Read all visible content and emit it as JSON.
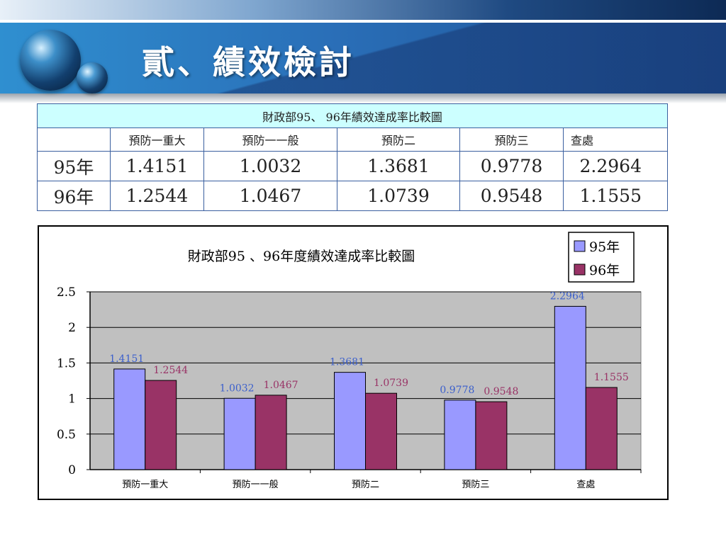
{
  "slide": {
    "title": "貳、績效檢討"
  },
  "table": {
    "caption": "財政部95、 96年績效達成率比較圖",
    "headers": [
      "",
      "預防一重大",
      "預防一一般",
      "預防二",
      "預防三",
      "查處"
    ],
    "rows": [
      {
        "label": "95年",
        "values": [
          "1.4151",
          "1.0032",
          "1.3681",
          "0.9778",
          "2.2964"
        ]
      },
      {
        "label": "96年",
        "values": [
          "1.2544",
          "1.0467",
          "1.0739",
          "0.9548",
          "1.1555"
        ]
      }
    ]
  },
  "chart_data": {
    "type": "bar",
    "title": "財政部95 、96年度績效達成率比較圖",
    "categories": [
      "預防一重大",
      "預防一一般",
      "預防二",
      "預防三",
      "查處"
    ],
    "series": [
      {
        "name": "95年",
        "values": [
          1.4151,
          1.0032,
          1.3681,
          0.9778,
          2.2964
        ],
        "color": "#9999ff",
        "label_color": "#3b5fcc"
      },
      {
        "name": "96年",
        "values": [
          1.2544,
          1.0467,
          1.0739,
          0.9548,
          1.1555
        ],
        "color": "#993366",
        "label_color": "#993366"
      }
    ],
    "ylim": [
      0,
      2.5
    ],
    "yticks": [
      "0",
      "0.5",
      "1",
      "1.5",
      "2",
      "2.5"
    ],
    "grid": true,
    "plot_background": "#c0c0c0",
    "legend": "top-right"
  }
}
